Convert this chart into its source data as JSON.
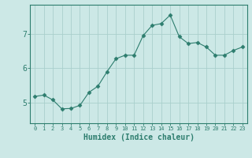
{
  "x": [
    0,
    1,
    2,
    3,
    4,
    5,
    6,
    7,
    8,
    9,
    10,
    11,
    12,
    13,
    14,
    15,
    16,
    17,
    18,
    19,
    20,
    21,
    22,
    23
  ],
  "y": [
    5.18,
    5.22,
    5.08,
    4.82,
    4.83,
    4.92,
    5.3,
    5.48,
    5.9,
    6.28,
    6.38,
    6.38,
    6.95,
    7.25,
    7.3,
    7.55,
    6.92,
    6.72,
    6.75,
    6.62,
    6.38,
    6.38,
    6.52,
    6.62
  ],
  "line_color": "#2d7d6e",
  "marker": "D",
  "marker_size": 2.5,
  "bg_color": "#cce8e6",
  "grid_color": "#aacfcc",
  "axis_color": "#2d7d6e",
  "xlabel": "Humidex (Indice chaleur)",
  "xlabel_fontsize": 7,
  "yticks": [
    5,
    6,
    7
  ],
  "xlim": [
    -0.5,
    23.5
  ],
  "ylim": [
    4.4,
    7.85
  ],
  "title": ""
}
